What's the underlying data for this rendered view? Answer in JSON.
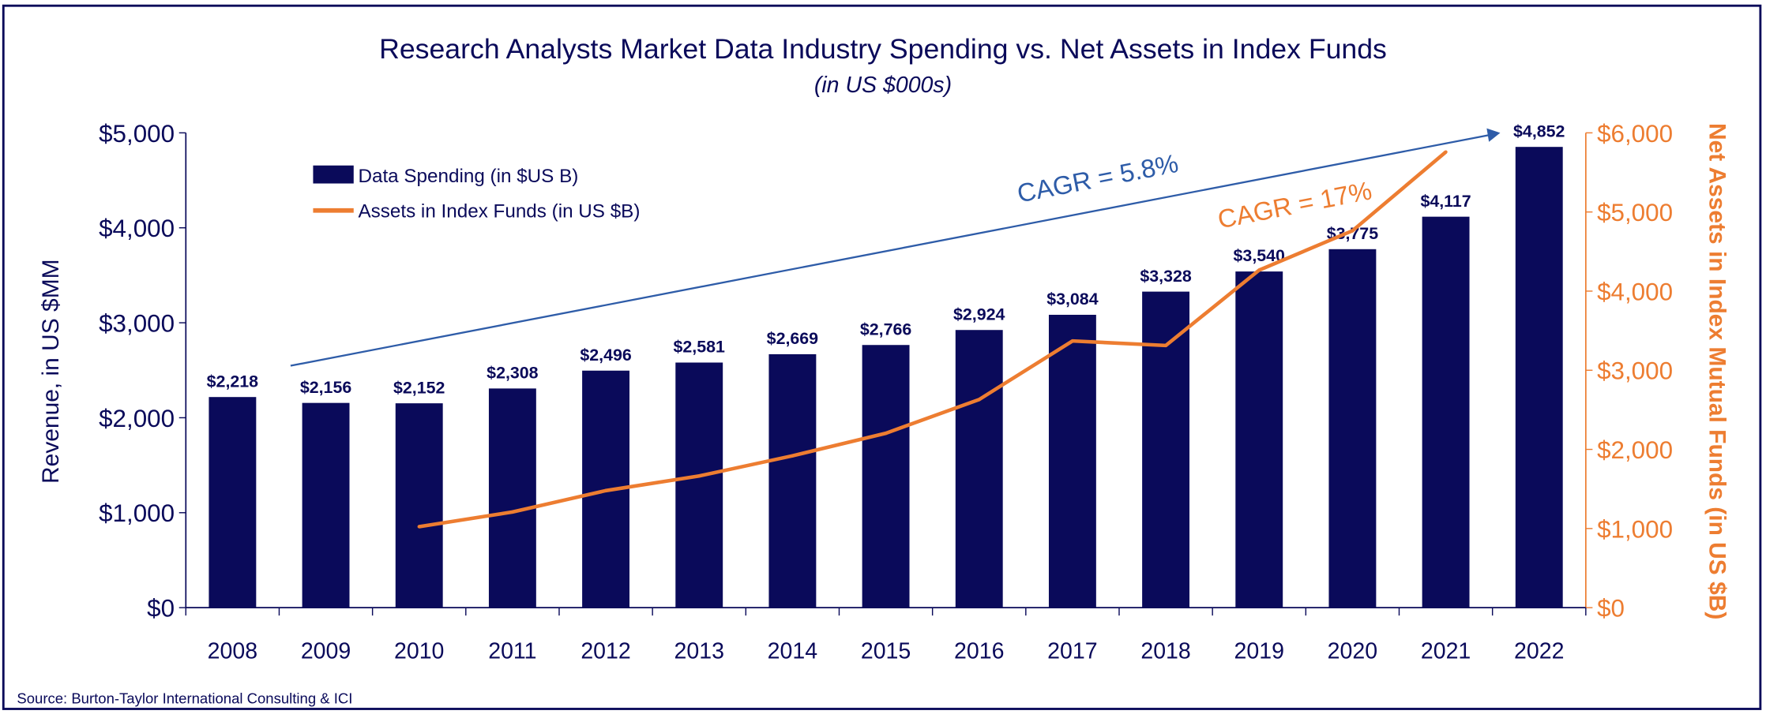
{
  "chart_data": {
    "type": "bar+line",
    "title": "Research Analysts Market Data Industry Spending vs. Net Assets in Index Funds",
    "subtitle": "(in US $000s)",
    "ylabel": "Revenue, in US $MM",
    "y2label": "Net Assets in Index Mutual Funds (in US $B)",
    "ylim": [
      0,
      5000
    ],
    "y2lim": [
      0,
      6000
    ],
    "yticks": [
      "$0",
      "$1,000",
      "$2,000",
      "$3,000",
      "$4,000",
      "$5,000"
    ],
    "y2ticks": [
      "$0",
      "$1,000",
      "$2,000",
      "$3,000",
      "$4,000",
      "$5,000",
      "$6,000"
    ],
    "categories": [
      "2008",
      "2009",
      "2010",
      "2011",
      "2012",
      "2013",
      "2014",
      "2015",
      "2016",
      "2017",
      "2018",
      "2019",
      "2020",
      "2021",
      "2022"
    ],
    "series": [
      {
        "name": "Data Spending (in $US B)",
        "type": "bar",
        "axis": "left",
        "color": "#0a0a5a",
        "values": [
          2218,
          2156,
          2152,
          2308,
          2496,
          2581,
          2669,
          2766,
          2924,
          3084,
          3328,
          3540,
          3775,
          4117,
          4852
        ],
        "labels": [
          "$2,218",
          "$2,156",
          "$2,152",
          "$2,308",
          "$2,496",
          "$2,581",
          "$2,669",
          "$2,766",
          "$2,924",
          "$3,084",
          "$3,328",
          "$3,540",
          "$3,775",
          "$4,117",
          "$4,852"
        ]
      },
      {
        "name": "Assets in Index Funds (in US $B)",
        "type": "line",
        "axis": "right",
        "color": "#ed7d31",
        "values": [
          null,
          null,
          1024,
          1209,
          1479,
          1664,
          1919,
          2204,
          2630,
          3370,
          3313,
          4265,
          4763,
          5758,
          null
        ]
      }
    ],
    "annotations": [
      {
        "text": "CAGR = 5.8%",
        "color": "#2e5ca8",
        "arrow_from": {
          "x": "2008",
          "y": 2550
        },
        "arrow_to": {
          "x": "2022",
          "y": 5000
        }
      },
      {
        "text": "CAGR = 17%",
        "color": "#ed7d31"
      }
    ],
    "legend": "top-left",
    "grid": false,
    "source": "Source: Burton-Taylor International Consulting & ICI"
  }
}
